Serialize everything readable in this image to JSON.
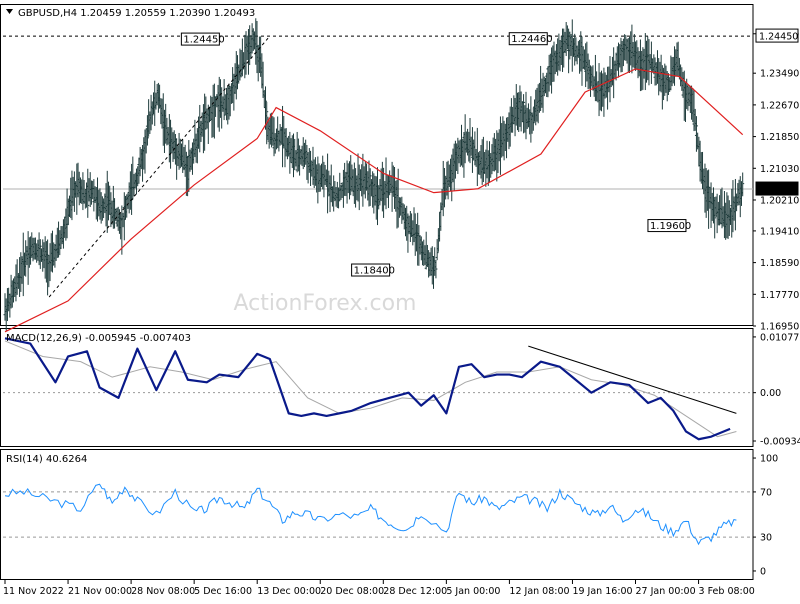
{
  "chart_data": [
    {
      "type": "line",
      "pane": "price",
      "title": "GBPUSD,H4  1.20459 1.20559 1.20390 1.20493",
      "ylim": [
        1.1695,
        1.2528
      ],
      "y_ticks": [
        "1.24510",
        "1.23490",
        "1.22670",
        "1.21850",
        "1.21030",
        "1.20210",
        "1.19410",
        "1.18590",
        "1.17770",
        "1.16950"
      ],
      "y_tick_values": [
        1.2451,
        1.2349,
        1.2267,
        1.2185,
        1.2103,
        1.2021,
        1.1941,
        1.1859,
        1.1777,
        1.1695
      ],
      "x_ticks": [
        "11 Nov 2022",
        "21 Nov 00:00",
        "28 Nov 08:00",
        "5 Dec 16:00",
        "13 Dec 00:00",
        "20 Dec 08:00",
        "28 Dec 12:00",
        "5 Jan 00:00",
        "12 Jan 08:00",
        "19 Jan 16:00",
        "27 Jan 00:00",
        "3 Feb 08:00"
      ],
      "x_tick_positions": [
        0,
        10,
        20,
        30,
        40,
        50,
        60,
        70,
        80,
        90,
        100,
        110
      ],
      "series": [
        {
          "role": "price",
          "values": [
            1.1735,
            1.1775,
            1.1825,
            1.188,
            1.19,
            1.188,
            1.1855,
            1.189,
            1.1935,
            1.2015,
            1.207,
            1.2025,
            1.205,
            1.1995,
            1.202,
            1.1985,
            1.196,
            1.203,
            1.208,
            1.214,
            1.225,
            1.229,
            1.22,
            1.216,
            1.214,
            1.21,
            1.216,
            1.221,
            1.224,
            1.228,
            1.226,
            1.23,
            1.235,
            1.24,
            1.2445,
            1.237,
            1.22,
            1.218,
            1.219,
            1.215,
            1.2125,
            1.214,
            1.21,
            1.207,
            1.208,
            1.203,
            1.204,
            1.208,
            1.206,
            1.208,
            1.206,
            1.203,
            1.205,
            1.206,
            1.201,
            1.196,
            1.194,
            1.19,
            1.186,
            1.1845,
            1.205,
            1.208,
            1.214,
            1.217,
            1.215,
            1.212,
            1.211,
            1.213,
            1.218,
            1.22,
            1.226,
            1.225,
            1.222,
            1.227,
            1.232,
            1.238,
            1.24,
            1.243,
            1.241,
            1.24,
            1.235,
            1.231,
            1.23,
            1.234,
            1.239,
            1.242,
            1.24,
            1.237,
            1.238,
            1.236,
            1.233,
            1.232,
            1.239,
            1.23,
            1.228,
            1.215,
            1.204,
            1.2,
            1.1985,
            1.197,
            1.201,
            1.205
          ],
          "x_start": 0,
          "x_end": 117
        },
        {
          "role": "moving-average",
          "x": [
            0,
            10,
            20,
            30,
            40,
            43,
            50,
            60,
            68,
            75,
            85,
            92,
            100,
            107,
            117
          ],
          "values": [
            1.168,
            1.176,
            1.192,
            1.206,
            1.218,
            1.226,
            1.22,
            1.209,
            1.204,
            1.205,
            1.214,
            1.23,
            1.236,
            1.234,
            1.219
          ]
        },
        {
          "role": "trendline",
          "x": [
            7,
            42
          ],
          "values": [
            1.177,
            1.2445
          ]
        }
      ],
      "reference_lines": [
        {
          "value": 1.2445,
          "label": "1.24450",
          "style": "dashed"
        },
        {
          "value": 1.20493,
          "label": "1.20493",
          "style": "solid"
        }
      ],
      "annotations": [
        {
          "text": "1.24450",
          "x": 34,
          "y": 1.2445
        },
        {
          "text": "1.24460",
          "x": 86,
          "y": 1.2446
        },
        {
          "text": "1.18400",
          "x": 61,
          "y": 1.1845
        },
        {
          "text": "1.19600",
          "x": 108,
          "y": 1.196
        }
      ],
      "watermark": "ActionForex.com"
    },
    {
      "type": "line",
      "pane": "macd",
      "title": "MACD(12,26,9) -0.005945 -0.007403",
      "ylim": [
        -0.0105,
        0.0125
      ],
      "y_ticks": [
        "0.010775",
        "0.00",
        "-0.009343"
      ],
      "y_tick_values": [
        0.010775,
        0.0,
        -0.009343
      ],
      "series": [
        {
          "role": "macd",
          "x": [
            0,
            4,
            8,
            10,
            13,
            15,
            18,
            21,
            24,
            27,
            29,
            32,
            34,
            37,
            40,
            42,
            45,
            47,
            49,
            51,
            53,
            55,
            58,
            61,
            64,
            66,
            68,
            70,
            72,
            74,
            76,
            78,
            80,
            82,
            85,
            88,
            90,
            93,
            96,
            99,
            102,
            104,
            106,
            108,
            110,
            112,
            115
          ],
          "values": [
            0.0105,
            0.0095,
            0.002,
            0.007,
            0.008,
            0.001,
            -0.001,
            0.0085,
            0.0005,
            0.008,
            0.0025,
            0.002,
            0.0035,
            0.003,
            0.0075,
            0.0065,
            -0.004,
            -0.0045,
            -0.004,
            -0.0045,
            -0.004,
            -0.0035,
            -0.002,
            -0.001,
            0.0,
            -0.0025,
            -0.0005,
            -0.004,
            0.005,
            0.0055,
            0.003,
            0.0035,
            0.0035,
            0.003,
            0.006,
            0.005,
            0.003,
            0.0,
            0.002,
            0.0015,
            -0.002,
            -0.001,
            -0.0035,
            -0.0075,
            -0.009,
            -0.0085,
            -0.007
          ]
        },
        {
          "role": "signal",
          "x": [
            0,
            6,
            12,
            17,
            23,
            28,
            33,
            38,
            43,
            48,
            53,
            58,
            63,
            68,
            73,
            78,
            83,
            88,
            93,
            98,
            103,
            108,
            113,
            116
          ],
          "values": [
            0.01,
            0.007,
            0.006,
            0.003,
            0.005,
            0.004,
            0.0025,
            0.0045,
            0.006,
            -0.001,
            -0.004,
            -0.003,
            -0.001,
            -0.0015,
            0.002,
            0.004,
            0.004,
            0.005,
            0.0025,
            0.0015,
            -0.0005,
            -0.0045,
            -0.0085,
            -0.0075
          ]
        },
        {
          "role": "trendline",
          "x": [
            83,
            116
          ],
          "values": [
            0.009,
            -0.004
          ]
        }
      ]
    },
    {
      "type": "line",
      "pane": "rsi",
      "title": "RSI(14) 40.6264",
      "ylim": [
        0,
        100
      ],
      "y_ticks": [
        "100",
        "70",
        "30",
        "0"
      ],
      "y_tick_values": [
        100,
        70,
        30,
        0
      ],
      "reference_lines": [
        {
          "value": 70
        },
        {
          "value": 30
        }
      ],
      "series": [
        {
          "role": "rsi",
          "x": [
            0,
            3,
            6,
            9,
            12,
            15,
            17,
            19,
            21,
            24,
            27,
            30,
            32,
            34,
            36,
            38,
            40,
            42,
            44,
            46,
            48,
            50,
            53,
            56,
            58,
            60,
            62,
            64,
            66,
            70,
            72,
            74,
            76,
            78,
            80,
            82,
            84,
            86,
            88,
            90,
            92,
            94,
            96,
            98,
            100,
            102,
            104,
            106,
            108,
            110,
            112,
            114,
            116
          ],
          "values": [
            68,
            70,
            65,
            60,
            55,
            78,
            60,
            75,
            62,
            50,
            70,
            52,
            55,
            65,
            60,
            55,
            72,
            60,
            45,
            52,
            50,
            45,
            50,
            48,
            55,
            46,
            40,
            38,
            52,
            35,
            70,
            60,
            65,
            55,
            60,
            65,
            62,
            55,
            70,
            62,
            55,
            50,
            58,
            45,
            55,
            50,
            40,
            35,
            45,
            25,
            30,
            40,
            45
          ]
        }
      ]
    }
  ]
}
